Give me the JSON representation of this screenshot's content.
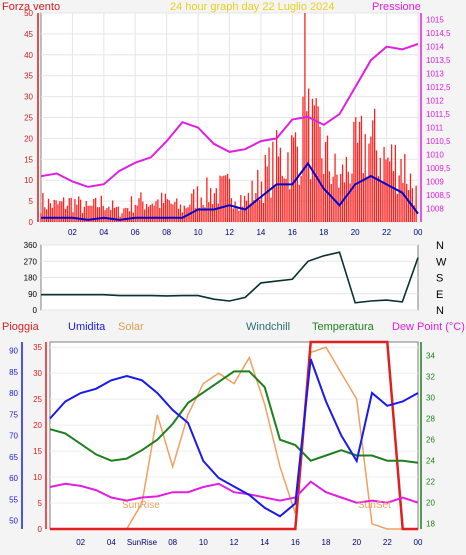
{
  "top_panel": {
    "left_title": "Forza vento",
    "center_title": "24 hour graph day   22 Luglio 2024",
    "right_title": "Pressione"
  },
  "bottom_panel": {
    "legend": {
      "rain": "Pioggia",
      "humidity": "Umidita",
      "solar": "Solar",
      "windchill": "Windchill",
      "temperature": "Temperatura",
      "dewpoint": "Dew Point (°C)"
    },
    "sunrise_label": "SunRise",
    "sunset_label": "SunSet",
    "x_sun_label": "SunRise"
  },
  "colors": {
    "wind": "#ff2020",
    "gust": "#0000cc",
    "pressure": "#e020e0",
    "humidity": "#1a1aee",
    "temperature": "#1f7f1f",
    "dewpoint": "#e020e0",
    "solar": "#f0a060",
    "rain": "#e02020",
    "direction": "#0a3030",
    "title_yellow": "#e8d020"
  },
  "chart_data": [
    {
      "type": "bar",
      "panel": "wind_pressure",
      "x_label_hours": [
        "02",
        "04",
        "06",
        "08",
        "10",
        "12",
        "14",
        "16",
        "18",
        "20",
        "22",
        "00"
      ],
      "wind_axis": {
        "ylim": [
          0,
          50
        ],
        "ticks": [
          0,
          5,
          10,
          15,
          20,
          25,
          30,
          35,
          40,
          45,
          50
        ]
      },
      "pressure_axis": {
        "ylim": [
          1007.5,
          1015.25
        ],
        "ticks": [
          "1008",
          "1008,5",
          "1009",
          "1009,5",
          "1010",
          "1010,5",
          "1011",
          "1011,5",
          "1012",
          "1012,5",
          "1013",
          "1013,5",
          "1014",
          "1014,5",
          "1015"
        ]
      },
      "wind_gust": {
        "x": [
          0,
          1,
          2,
          3,
          4,
          5,
          6,
          7,
          8,
          9,
          10,
          11,
          12,
          13,
          14,
          15,
          16,
          17,
          18,
          19,
          20,
          21,
          22,
          23,
          24
        ],
        "values": [
          6,
          5,
          6,
          4,
          6,
          3,
          6,
          6,
          6,
          4,
          8,
          9,
          10,
          6,
          12,
          18,
          20,
          28,
          20,
          12,
          20,
          24,
          18,
          18,
          7
        ]
      },
      "wind_avg": {
        "x": [
          0,
          1,
          2,
          3,
          4,
          5,
          6,
          7,
          8,
          9,
          10,
          11,
          12,
          13,
          14,
          15,
          16,
          17,
          18,
          19,
          20,
          21,
          22,
          23,
          24
        ],
        "values": [
          1,
          1,
          1,
          0.5,
          1,
          0.5,
          1,
          1,
          1,
          1,
          3,
          3,
          4,
          3,
          6,
          9,
          9,
          14,
          8,
          4,
          9,
          11,
          9,
          7,
          2
        ]
      },
      "pressure": {
        "x": [
          0,
          1,
          2,
          3,
          4,
          5,
          6,
          7,
          8,
          9,
          10,
          11,
          12,
          13,
          14,
          15,
          16,
          17,
          18,
          19,
          20,
          21,
          22,
          23,
          24
        ],
        "values": [
          1009.2,
          1009.3,
          1009.0,
          1008.8,
          1008.9,
          1009.4,
          1009.7,
          1009.9,
          1010.5,
          1011.2,
          1011.0,
          1010.4,
          1010.1,
          1010.2,
          1010.5,
          1010.6,
          1011.3,
          1011.4,
          1011.1,
          1011.5,
          1012.5,
          1013.5,
          1014.0,
          1013.9,
          1014.1
        ]
      }
    },
    {
      "type": "line",
      "panel": "wind_direction",
      "ylim": [
        0,
        360
      ],
      "y_ticks": [
        0,
        90,
        180,
        270,
        360
      ],
      "compass": [
        "N",
        "W",
        "S",
        "E",
        "N"
      ],
      "x": [
        0,
        1,
        2,
        3,
        4,
        5,
        6,
        7,
        8,
        9,
        10,
        11,
        12,
        13,
        14,
        15,
        16,
        17,
        18,
        19,
        20,
        21,
        22,
        23,
        24
      ],
      "values": [
        85,
        85,
        85,
        85,
        85,
        80,
        80,
        80,
        78,
        80,
        80,
        60,
        50,
        70,
        150,
        160,
        170,
        270,
        300,
        320,
        40,
        50,
        55,
        45,
        290
      ]
    },
    {
      "type": "line",
      "panel": "weather",
      "rain_axis": {
        "ylim": [
          0,
          36
        ],
        "ticks": [
          0,
          5,
          10,
          15,
          20,
          25,
          30,
          35
        ]
      },
      "humidity_axis": {
        "ylim": [
          48,
          92
        ],
        "ticks": [
          50,
          55,
          60,
          65,
          70,
          75,
          80,
          85,
          90
        ]
      },
      "temp_axis": {
        "ylim": [
          17.5,
          35.3
        ],
        "ticks": [
          18,
          20,
          22,
          24,
          26,
          28,
          30,
          32,
          34
        ]
      },
      "x": [
        0,
        1,
        2,
        3,
        4,
        5,
        6,
        7,
        8,
        9,
        10,
        11,
        12,
        13,
        14,
        15,
        16,
        17,
        18,
        19,
        20,
        21,
        22,
        23,
        24
      ],
      "humidity": [
        74,
        78,
        80,
        81,
        83,
        84,
        83,
        80,
        76,
        73,
        64,
        60,
        58,
        56,
        53,
        51,
        54,
        88,
        78,
        70,
        64,
        80,
        77,
        78,
        80
      ],
      "temperature": [
        27,
        26.6,
        25.6,
        24.6,
        24.0,
        24.2,
        25,
        26,
        27.5,
        29.5,
        30.5,
        31.5,
        32.5,
        32.5,
        31,
        26,
        25.5,
        24,
        24.5,
        25,
        24.5,
        24.5,
        24,
        24,
        23.8
      ],
      "dewpoint": [
        21.5,
        21.8,
        21.6,
        21.2,
        20.5,
        20.2,
        20.5,
        20.6,
        21,
        21,
        21.5,
        21.8,
        21,
        20.8,
        20.5,
        20.2,
        20.5,
        22,
        21,
        20.5,
        20,
        20.2,
        20,
        20.5,
        20
      ],
      "solar": [
        0,
        0,
        0,
        0,
        0,
        0,
        5,
        22,
        12,
        22,
        28,
        30,
        28,
        33,
        24,
        12,
        3,
        34,
        35,
        30,
        25,
        1,
        0,
        0,
        0
      ],
      "rain": [
        0,
        0,
        0,
        0,
        0,
        0,
        0,
        0,
        0,
        0,
        0,
        0,
        0,
        0,
        0,
        0,
        0,
        36,
        36,
        36,
        36,
        36,
        36,
        0,
        0
      ]
    }
  ]
}
